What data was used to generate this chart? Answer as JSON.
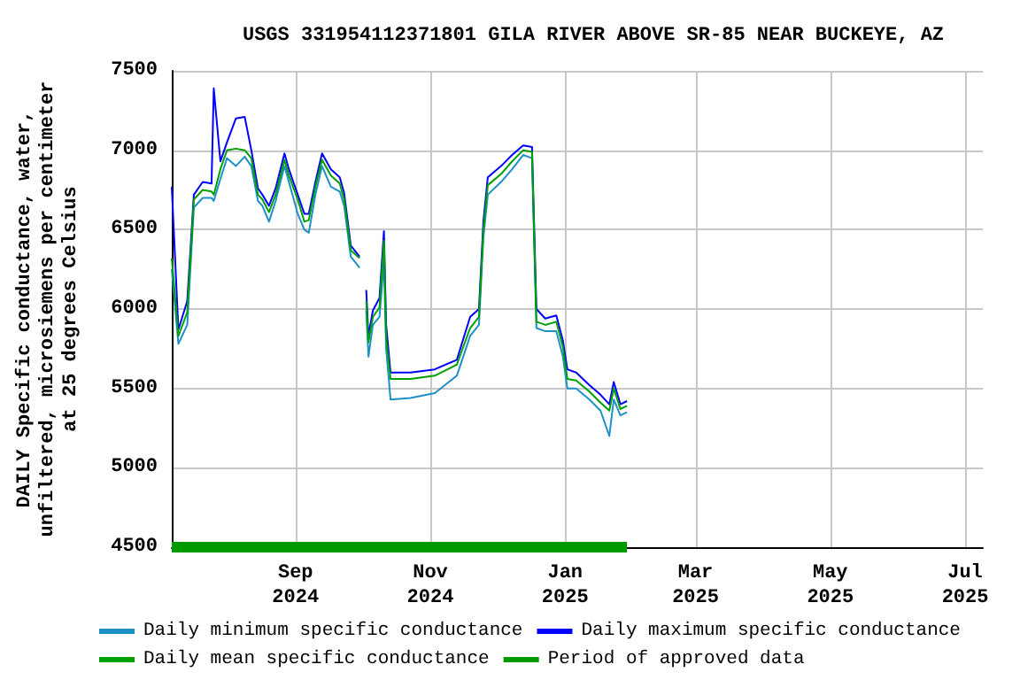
{
  "chart_data": {
    "type": "line",
    "title": "USGS 331954112371801 GILA RIVER ABOVE SR-85 NEAR BUCKEYE, AZ",
    "ylabel": "DAILY Specific conductance, water,\nunfiltered, microsiemens per centimeter\nat 25 degrees Celsius",
    "x": [
      "2024-07-07",
      "2024-07-10",
      "2024-07-14",
      "2024-07-17",
      "2024-07-21",
      "2024-07-25",
      "2024-07-26",
      "2024-07-29",
      "2024-08-01",
      "2024-08-05",
      "2024-08-09",
      "2024-08-12",
      "2024-08-15",
      "2024-08-17",
      "2024-08-20",
      "2024-08-23",
      "2024-08-27",
      "2024-08-29",
      "2024-09-02",
      "2024-09-05",
      "2024-09-07",
      "2024-09-10",
      "2024-09-13",
      "2024-09-17",
      "2024-09-21",
      "2024-09-23",
      "2024-09-26",
      "2024-09-30",
      "2024-10-01",
      "2024-10-03",
      "2024-10-04",
      "2024-10-06",
      "2024-10-09",
      "2024-10-11",
      "2024-10-12",
      "2024-10-14",
      "2024-10-23",
      "2024-11-03",
      "2024-11-13",
      "2024-11-19",
      "2024-11-23",
      "2024-11-25",
      "2024-11-27",
      "2024-12-03",
      "2024-12-08",
      "2024-12-13",
      "2024-12-17",
      "2024-12-19",
      "2024-12-23",
      "2024-12-28",
      "2024-12-31",
      "2025-01-02",
      "2025-01-06",
      "2025-01-12",
      "2025-01-17",
      "2025-01-21",
      "2025-01-23",
      "2025-01-26",
      "2025-01-29"
    ],
    "series": [
      {
        "name": "Daily minimum specific conductance",
        "color": "#1e90c8",
        "values": [
          6250,
          5780,
          5900,
          6640,
          6700,
          6700,
          6680,
          6820,
          6950,
          6900,
          6960,
          6900,
          6680,
          6650,
          6550,
          6680,
          6900,
          6800,
          6600,
          6500,
          6480,
          6720,
          6900,
          6770,
          6740,
          6650,
          6330,
          6260,
          null,
          5990,
          5700,
          5900,
          5950,
          6300,
          5750,
          5430,
          5440,
          5470,
          5580,
          5830,
          5900,
          6450,
          6720,
          6800,
          6880,
          6970,
          6950,
          5880,
          5860,
          5860,
          5700,
          5500,
          5500,
          5430,
          5360,
          5200,
          5430,
          5330,
          5350
        ]
      },
      {
        "name": "Daily maximum specific conductance",
        "color": "#0000ff",
        "values": [
          6770,
          5870,
          6050,
          6720,
          6800,
          6790,
          7390,
          6930,
          7050,
          7200,
          7210,
          7000,
          6760,
          6720,
          6650,
          6760,
          6980,
          6880,
          6720,
          6600,
          6600,
          6800,
          6980,
          6880,
          6830,
          6730,
          6400,
          6330,
          null,
          6120,
          5830,
          5990,
          6070,
          6490,
          5900,
          5600,
          5600,
          5620,
          5680,
          5950,
          6000,
          6550,
          6830,
          6900,
          6970,
          7030,
          7020,
          6000,
          5940,
          5960,
          5800,
          5620,
          5600,
          5520,
          5460,
          5400,
          5540,
          5400,
          5420
        ]
      },
      {
        "name": "Daily mean specific conductance",
        "color": "#00a000",
        "values": [
          6320,
          5830,
          5980,
          6690,
          6750,
          6740,
          6720,
          6880,
          7000,
          7010,
          7000,
          6950,
          6720,
          6690,
          6610,
          6720,
          6940,
          6840,
          6690,
          6550,
          6560,
          6770,
          6940,
          6840,
          6790,
          6690,
          6370,
          6320,
          null,
          6050,
          5790,
          5950,
          6010,
          6430,
          5820,
          5560,
          5560,
          5580,
          5650,
          5880,
          5950,
          6500,
          6780,
          6850,
          6930,
          7000,
          6990,
          5920,
          5900,
          5920,
          5760,
          5560,
          5550,
          5480,
          5410,
          5360,
          5500,
          5370,
          5390
        ]
      },
      {
        "name": "Period of approved data",
        "color": "#009900",
        "x": [
          "2024-07-07",
          "2025-01-29"
        ],
        "values": [
          4500,
          4500
        ]
      }
    ],
    "xlim": [
      "2024-07-07",
      "2025-07-09"
    ],
    "xticks": [
      {
        "value": "2024-09-01",
        "label": "Sep\n2024"
      },
      {
        "value": "2024-11-01",
        "label": "Nov\n2024"
      },
      {
        "value": "2025-01-01",
        "label": "Jan\n2025"
      },
      {
        "value": "2025-03-01",
        "label": "Mar\n2025"
      },
      {
        "value": "2025-05-01",
        "label": "May\n2025"
      },
      {
        "value": "2025-07-01",
        "label": "Jul\n2025"
      }
    ],
    "ylim": [
      4500,
      7500
    ],
    "yticks": [
      4500,
      5000,
      5500,
      6000,
      6500,
      7000,
      7500
    ],
    "grid": true,
    "legend": "bottom",
    "marker": "none"
  }
}
